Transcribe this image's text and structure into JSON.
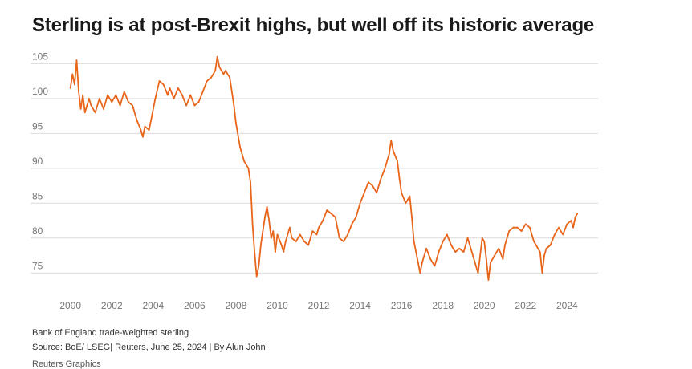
{
  "title": "Sterling is at post-Brexit highs, but well off its historic average",
  "footer": {
    "subtitle": "Bank of England trade-weighted sterling",
    "source": "Source: BoE/ LSEG| Reuters, June 25, 2024 | By Alun John",
    "credit": "Reuters Graphics"
  },
  "colors": {
    "series": "#e8651a",
    "grid": "#dcdcdc",
    "tick": "#777777"
  },
  "chart_data": {
    "type": "line",
    "title": "Sterling is at post-Brexit highs, but well off its historic average",
    "xlabel": "",
    "ylabel": "",
    "xlim": [
      1999.7,
      2025.5
    ],
    "ylim": [
      72.5,
      107
    ],
    "grid": "horizontal",
    "legend": "none",
    "x_ticks": [
      "2000",
      "2002",
      "2004",
      "2006",
      "2008",
      "2010",
      "2012",
      "2014",
      "2016",
      "2018",
      "2020",
      "2022",
      "2024"
    ],
    "y_ticks": [
      "75",
      "80",
      "85",
      "90",
      "95",
      "100",
      "105"
    ],
    "series": [
      {
        "color": "#e8651a",
        "points": [
          [
            2000.0,
            101.5
          ],
          [
            2000.1,
            103.5
          ],
          [
            2000.2,
            102.0
          ],
          [
            2000.3,
            105.5
          ],
          [
            2000.4,
            101.0
          ],
          [
            2000.5,
            98.5
          ],
          [
            2000.6,
            100.5
          ],
          [
            2000.7,
            98.0
          ],
          [
            2000.9,
            100.0
          ],
          [
            2001.0,
            99.0
          ],
          [
            2001.2,
            98.0
          ],
          [
            2001.4,
            100.0
          ],
          [
            2001.6,
            98.5
          ],
          [
            2001.8,
            100.5
          ],
          [
            2002.0,
            99.5
          ],
          [
            2002.2,
            100.5
          ],
          [
            2002.4,
            99.0
          ],
          [
            2002.6,
            101.0
          ],
          [
            2002.8,
            99.5
          ],
          [
            2003.0,
            99.0
          ],
          [
            2003.2,
            97.0
          ],
          [
            2003.4,
            95.5
          ],
          [
            2003.5,
            94.5
          ],
          [
            2003.6,
            96.0
          ],
          [
            2003.8,
            95.5
          ],
          [
            2003.9,
            97.0
          ],
          [
            2004.1,
            100.0
          ],
          [
            2004.3,
            102.5
          ],
          [
            2004.5,
            102.0
          ],
          [
            2004.7,
            100.5
          ],
          [
            2004.8,
            101.5
          ],
          [
            2005.0,
            100.0
          ],
          [
            2005.2,
            101.5
          ],
          [
            2005.4,
            100.5
          ],
          [
            2005.6,
            99.0
          ],
          [
            2005.8,
            100.5
          ],
          [
            2006.0,
            99.0
          ],
          [
            2006.2,
            99.5
          ],
          [
            2006.4,
            101.0
          ],
          [
            2006.6,
            102.5
          ],
          [
            2006.8,
            103.0
          ],
          [
            2007.0,
            104.0
          ],
          [
            2007.1,
            106.0
          ],
          [
            2007.2,
            104.5
          ],
          [
            2007.4,
            103.5
          ],
          [
            2007.5,
            104.0
          ],
          [
            2007.7,
            103.0
          ],
          [
            2007.8,
            101.0
          ],
          [
            2007.9,
            99.0
          ],
          [
            2008.0,
            96.5
          ],
          [
            2008.2,
            93.0
          ],
          [
            2008.4,
            91.0
          ],
          [
            2008.6,
            90.0
          ],
          [
            2008.7,
            88.0
          ],
          [
            2008.8,
            82.0
          ],
          [
            2008.9,
            78.0
          ],
          [
            2009.0,
            74.5
          ],
          [
            2009.1,
            76.0
          ],
          [
            2009.2,
            79.0
          ],
          [
            2009.3,
            81.0
          ],
          [
            2009.4,
            83.0
          ],
          [
            2009.5,
            84.5
          ],
          [
            2009.6,
            82.5
          ],
          [
            2009.7,
            80.0
          ],
          [
            2009.8,
            81.0
          ],
          [
            2009.9,
            78.0
          ],
          [
            2010.0,
            80.5
          ],
          [
            2010.2,
            79.0
          ],
          [
            2010.3,
            78.0
          ],
          [
            2010.4,
            79.5
          ],
          [
            2010.6,
            81.5
          ],
          [
            2010.7,
            80.0
          ],
          [
            2010.9,
            79.5
          ],
          [
            2011.1,
            80.5
          ],
          [
            2011.3,
            79.5
          ],
          [
            2011.5,
            79.0
          ],
          [
            2011.7,
            81.0
          ],
          [
            2011.9,
            80.5
          ],
          [
            2012.0,
            81.5
          ],
          [
            2012.2,
            82.5
          ],
          [
            2012.4,
            84.0
          ],
          [
            2012.6,
            83.5
          ],
          [
            2012.8,
            83.0
          ],
          [
            2013.0,
            80.0
          ],
          [
            2013.2,
            79.5
          ],
          [
            2013.4,
            80.5
          ],
          [
            2013.6,
            82.0
          ],
          [
            2013.8,
            83.0
          ],
          [
            2014.0,
            85.0
          ],
          [
            2014.2,
            86.5
          ],
          [
            2014.4,
            88.0
          ],
          [
            2014.6,
            87.5
          ],
          [
            2014.8,
            86.5
          ],
          [
            2015.0,
            88.5
          ],
          [
            2015.2,
            90.0
          ],
          [
            2015.4,
            92.0
          ],
          [
            2015.5,
            94.0
          ],
          [
            2015.6,
            92.5
          ],
          [
            2015.8,
            91.0
          ],
          [
            2015.9,
            88.5
          ],
          [
            2016.0,
            86.5
          ],
          [
            2016.2,
            85.0
          ],
          [
            2016.4,
            86.0
          ],
          [
            2016.5,
            83.0
          ],
          [
            2016.6,
            79.5
          ],
          [
            2016.8,
            76.5
          ],
          [
            2016.9,
            75.0
          ],
          [
            2017.0,
            76.5
          ],
          [
            2017.2,
            78.5
          ],
          [
            2017.4,
            77.0
          ],
          [
            2017.6,
            76.0
          ],
          [
            2017.8,
            78.0
          ],
          [
            2018.0,
            79.5
          ],
          [
            2018.2,
            80.5
          ],
          [
            2018.4,
            79.0
          ],
          [
            2018.6,
            78.0
          ],
          [
            2018.8,
            78.5
          ],
          [
            2019.0,
            78.0
          ],
          [
            2019.2,
            80.0
          ],
          [
            2019.4,
            78.0
          ],
          [
            2019.6,
            76.0
          ],
          [
            2019.7,
            75.0
          ],
          [
            2019.8,
            77.5
          ],
          [
            2019.9,
            80.0
          ],
          [
            2020.0,
            79.5
          ],
          [
            2020.1,
            77.0
          ],
          [
            2020.2,
            74.0
          ],
          [
            2020.3,
            76.5
          ],
          [
            2020.5,
            77.5
          ],
          [
            2020.7,
            78.5
          ],
          [
            2020.9,
            77.0
          ],
          [
            2021.0,
            79.0
          ],
          [
            2021.2,
            81.0
          ],
          [
            2021.4,
            81.5
          ],
          [
            2021.6,
            81.5
          ],
          [
            2021.8,
            81.0
          ],
          [
            2022.0,
            82.0
          ],
          [
            2022.2,
            81.5
          ],
          [
            2022.4,
            79.5
          ],
          [
            2022.5,
            79.0
          ],
          [
            2022.7,
            78.0
          ],
          [
            2022.8,
            75.0
          ],
          [
            2022.9,
            77.5
          ],
          [
            2023.0,
            78.5
          ],
          [
            2023.2,
            79.0
          ],
          [
            2023.4,
            80.5
          ],
          [
            2023.6,
            81.5
          ],
          [
            2023.8,
            80.5
          ],
          [
            2024.0,
            82.0
          ],
          [
            2024.2,
            82.5
          ],
          [
            2024.3,
            81.5
          ],
          [
            2024.4,
            83.0
          ],
          [
            2024.5,
            83.5
          ]
        ]
      }
    ]
  }
}
